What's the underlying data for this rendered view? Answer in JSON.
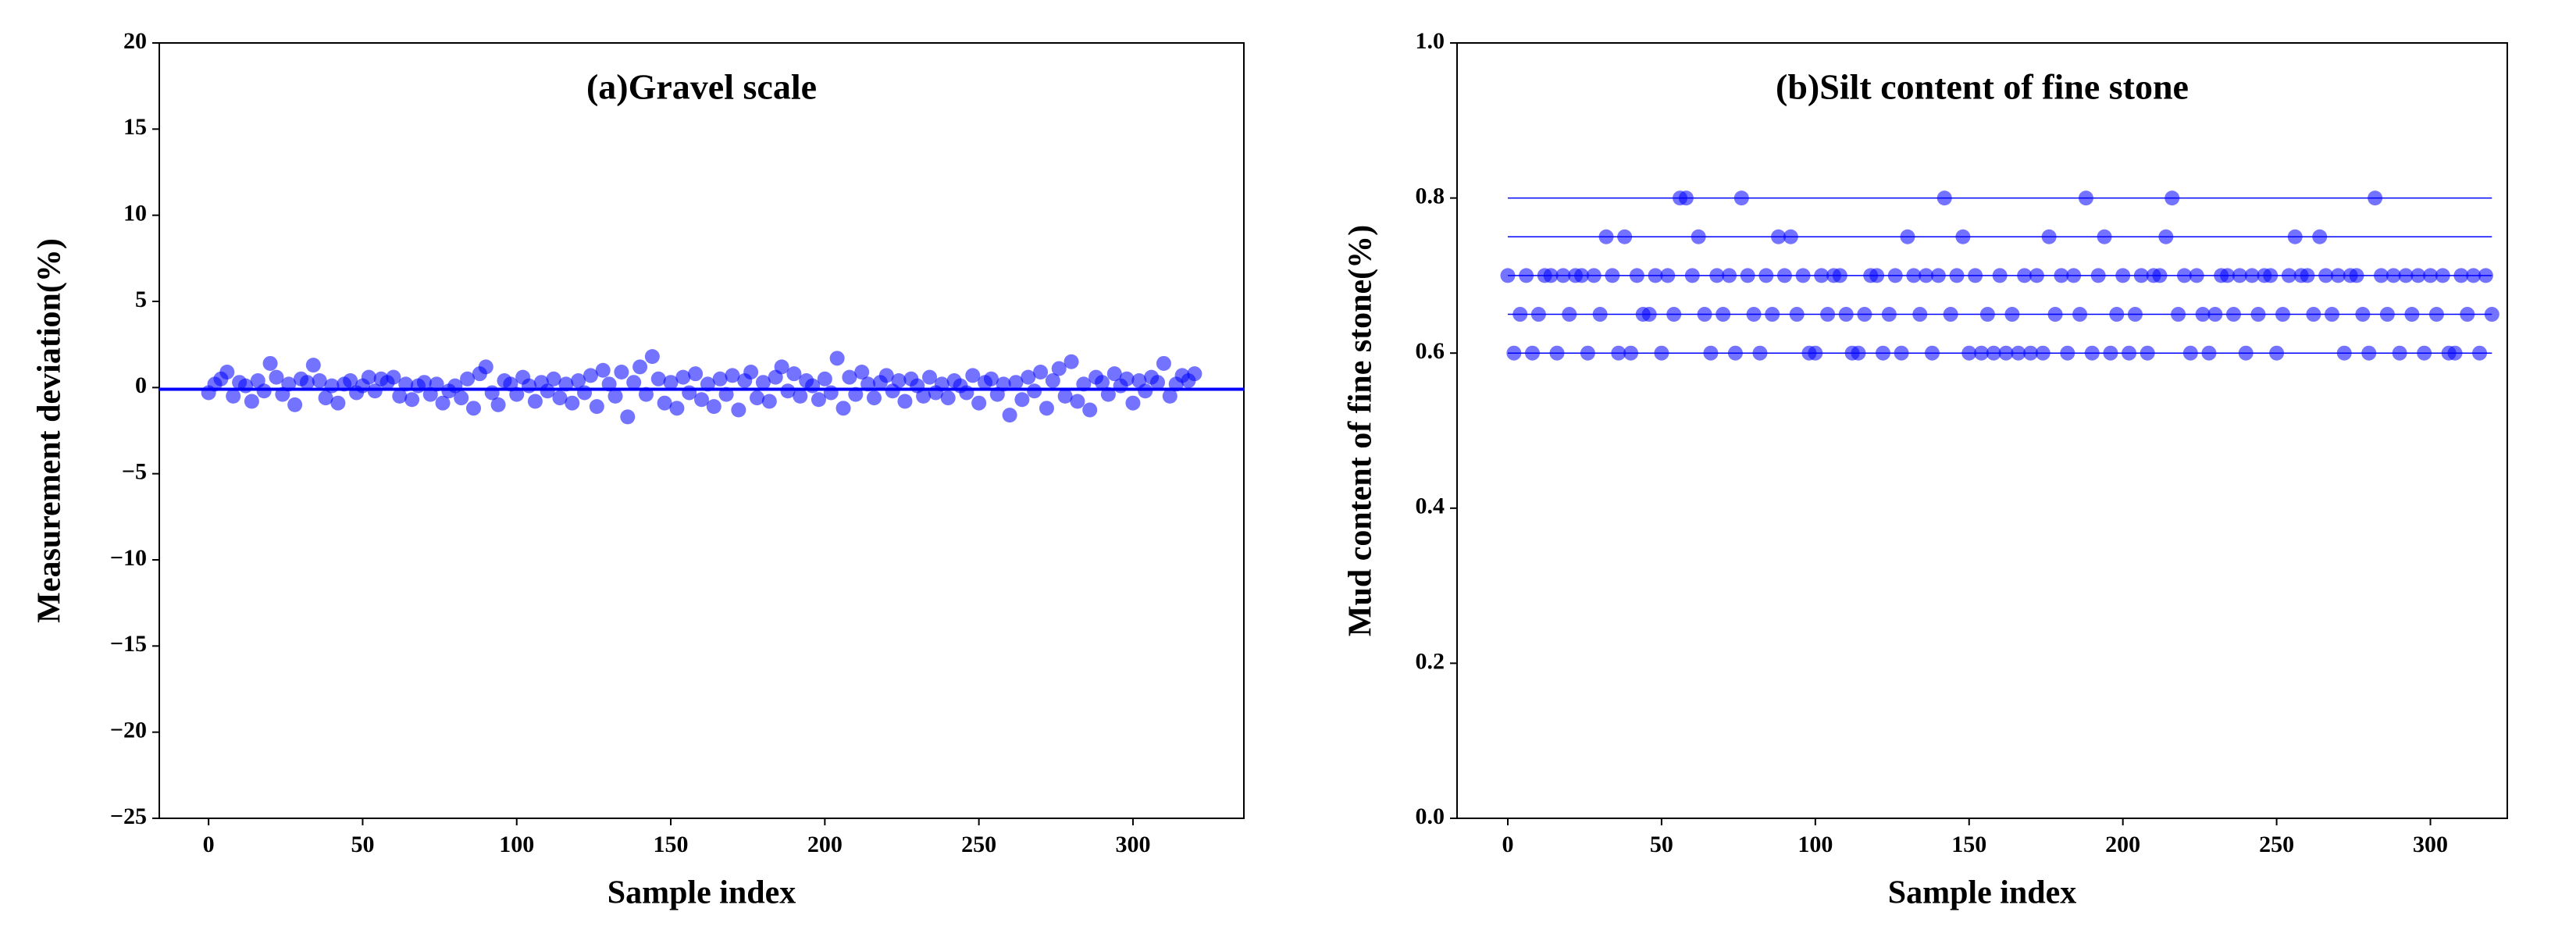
{
  "chart_data": [
    {
      "type": "scatter",
      "title": "(a)Gravel scale",
      "x_label": "Sample index",
      "y_label": "Measurement deviation(%)",
      "color": "#0000ff",
      "reference_lines": [
        -0.1
      ],
      "xlim": [
        -16,
        336
      ],
      "ylim": [
        -25,
        20
      ],
      "xticks": [
        0,
        50,
        100,
        150,
        200,
        250,
        300
      ],
      "yticks": [
        {
          "value": -25,
          "label": "−25"
        },
        {
          "value": -20,
          "label": "−20"
        },
        {
          "value": -15,
          "label": "−15"
        },
        {
          "value": -10,
          "label": "−10"
        },
        {
          "value": -5,
          "label": "−5"
        },
        0,
        5,
        10,
        15,
        20
      ],
      "x": [
        0,
        2,
        4,
        6,
        8,
        10,
        12,
        14,
        16,
        18,
        20,
        22,
        24,
        26,
        28,
        30,
        32,
        34,
        36,
        38,
        40,
        42,
        44,
        46,
        48,
        50,
        52,
        54,
        56,
        58,
        60,
        62,
        64,
        66,
        68,
        70,
        72,
        74,
        76,
        78,
        80,
        82,
        84,
        86,
        88,
        90,
        92,
        94,
        96,
        98,
        100,
        102,
        104,
        106,
        108,
        110,
        112,
        114,
        116,
        118,
        120,
        122,
        124,
        126,
        128,
        130,
        132,
        134,
        136,
        138,
        140,
        142,
        144,
        146,
        148,
        150,
        152,
        154,
        156,
        158,
        160,
        162,
        164,
        166,
        168,
        170,
        172,
        174,
        176,
        178,
        180,
        182,
        184,
        186,
        188,
        190,
        192,
        194,
        196,
        198,
        200,
        202,
        204,
        206,
        208,
        210,
        212,
        214,
        216,
        218,
        220,
        222,
        224,
        226,
        228,
        230,
        232,
        234,
        236,
        238,
        240,
        242,
        244,
        246,
        248,
        250,
        252,
        254,
        256,
        258,
        260,
        262,
        264,
        266,
        268,
        270,
        272,
        274,
        276,
        278,
        280,
        282,
        284,
        286,
        288,
        290,
        292,
        294,
        296,
        298,
        300,
        302,
        304,
        306,
        308,
        310,
        312,
        314,
        316,
        318,
        320
      ],
      "values": [
        -0.3,
        0.2,
        0.5,
        0.9,
        -0.5,
        0.3,
        0.1,
        -0.8,
        0.4,
        -0.2,
        1.4,
        0.6,
        -0.4,
        0.2,
        -1.0,
        0.5,
        0.3,
        1.3,
        0.4,
        -0.6,
        0.1,
        -0.9,
        0.2,
        0.4,
        -0.3,
        0.1,
        0.6,
        -0.2,
        0.5,
        0.3,
        0.6,
        -0.5,
        0.2,
        -0.7,
        0.1,
        0.3,
        -0.4,
        0.2,
        -0.9,
        -0.2,
        0.1,
        -0.6,
        0.5,
        -1.2,
        0.8,
        1.2,
        -0.3,
        -1.0,
        0.4,
        0.2,
        -0.4,
        0.6,
        0.1,
        -0.8,
        0.3,
        -0.2,
        0.5,
        -0.6,
        0.2,
        -0.9,
        0.4,
        -0.3,
        0.7,
        -1.1,
        1.0,
        0.2,
        -0.5,
        0.9,
        -1.7,
        0.3,
        1.2,
        -0.4,
        1.8,
        0.5,
        -0.9,
        0.3,
        -1.2,
        0.6,
        -0.3,
        0.8,
        -0.7,
        0.2,
        -1.1,
        0.5,
        -0.4,
        0.7,
        -1.3,
        0.4,
        0.9,
        -0.6,
        0.3,
        -0.8,
        0.6,
        1.2,
        -0.2,
        0.8,
        -0.5,
        0.4,
        0.1,
        -0.7,
        0.5,
        -0.3,
        1.7,
        -1.2,
        0.6,
        -0.4,
        0.9,
        0.2,
        -0.6,
        0.3,
        0.7,
        -0.2,
        0.4,
        -0.8,
        0.5,
        0.1,
        -0.5,
        0.6,
        -0.3,
        0.2,
        -0.6,
        0.4,
        0.1,
        -0.3,
        0.7,
        -0.9,
        0.3,
        0.5,
        -0.4,
        0.2,
        -1.6,
        0.3,
        -0.7,
        0.6,
        -0.2,
        0.9,
        -1.2,
        0.4,
        1.1,
        -0.5,
        1.5,
        -0.8,
        0.2,
        -1.3,
        0.6,
        0.3,
        -0.4,
        0.8,
        0.1,
        0.5,
        -0.9,
        0.4,
        -0.2,
        0.6,
        0.3,
        1.4,
        -0.5,
        0.2,
        0.7,
        0.4,
        0.8
      ]
    },
    {
      "type": "scatter",
      "title": "(b)Silt content of fine stone",
      "x_label": "Sample index",
      "y_label": "Mud content of fine stone(%)",
      "color": "#0000ff",
      "reference_lines": [
        0.6,
        0.65,
        0.7,
        0.75,
        0.8
      ],
      "xlim": [
        -16.5,
        325
      ],
      "ylim": [
        0,
        1
      ],
      "xticks": [
        0,
        50,
        100,
        150,
        200,
        250,
        300
      ],
      "yticks": [
        {
          "value": 0,
          "label": "0.0"
        },
        0.2,
        0.4,
        0.6,
        0.8,
        {
          "value": 1,
          "label": "1.0"
        }
      ],
      "x": [
        0,
        2,
        4,
        6,
        8,
        10,
        12,
        14,
        16,
        18,
        20,
        22,
        24,
        26,
        28,
        30,
        32,
        34,
        36,
        38,
        40,
        42,
        44,
        46,
        48,
        50,
        52,
        54,
        56,
        58,
        60,
        62,
        64,
        66,
        68,
        70,
        72,
        74,
        76,
        78,
        80,
        82,
        84,
        86,
        88,
        90,
        92,
        94,
        96,
        98,
        100,
        102,
        104,
        106,
        108,
        110,
        112,
        114,
        116,
        118,
        120,
        122,
        124,
        126,
        128,
        130,
        132,
        134,
        136,
        138,
        140,
        142,
        144,
        146,
        148,
        150,
        152,
        154,
        156,
        158,
        160,
        162,
        164,
        166,
        168,
        170,
        172,
        174,
        176,
        178,
        180,
        182,
        184,
        186,
        188,
        190,
        192,
        194,
        196,
        198,
        200,
        202,
        204,
        206,
        208,
        210,
        212,
        214,
        216,
        218,
        220,
        222,
        224,
        226,
        228,
        230,
        232,
        234,
        236,
        238,
        240,
        242,
        244,
        246,
        248,
        250,
        252,
        254,
        256,
        258,
        260,
        262,
        264,
        266,
        268,
        270,
        272,
        274,
        276,
        278,
        280,
        282,
        284,
        286,
        288,
        290,
        292,
        294,
        296,
        298,
        300,
        302,
        304,
        306,
        308,
        310,
        312,
        314,
        316,
        318,
        320
      ],
      "values": [
        0.7,
        0.6,
        0.65,
        0.7,
        0.6,
        0.65,
        0.7,
        0.7,
        0.6,
        0.7,
        0.65,
        0.7,
        0.7,
        0.6,
        0.7,
        0.65,
        0.75,
        0.7,
        0.6,
        0.75,
        0.6,
        0.7,
        0.65,
        0.65,
        0.7,
        0.6,
        0.7,
        0.65,
        0.8,
        0.8,
        0.7,
        0.75,
        0.65,
        0.6,
        0.7,
        0.65,
        0.7,
        0.6,
        0.8,
        0.7,
        0.65,
        0.6,
        0.7,
        0.65,
        0.75,
        0.7,
        0.75,
        0.65,
        0.7,
        0.6,
        0.6,
        0.7,
        0.65,
        0.7,
        0.7,
        0.65,
        0.6,
        0.6,
        0.65,
        0.7,
        0.7,
        0.6,
        0.65,
        0.7,
        0.6,
        0.75,
        0.7,
        0.65,
        0.7,
        0.6,
        0.7,
        0.8,
        0.65,
        0.7,
        0.75,
        0.6,
        0.7,
        0.6,
        0.65,
        0.6,
        0.7,
        0.6,
        0.65,
        0.6,
        0.7,
        0.6,
        0.7,
        0.6,
        0.75,
        0.65,
        0.7,
        0.6,
        0.7,
        0.65,
        0.8,
        0.6,
        0.7,
        0.75,
        0.6,
        0.65,
        0.7,
        0.6,
        0.65,
        0.7,
        0.6,
        0.7,
        0.7,
        0.75,
        0.8,
        0.65,
        0.7,
        0.6,
        0.7,
        0.65,
        0.6,
        0.65,
        0.7,
        0.7,
        0.65,
        0.7,
        0.6,
        0.7,
        0.65,
        0.7,
        0.7,
        0.6,
        0.65,
        0.7,
        0.75,
        0.7,
        0.7,
        0.65,
        0.75,
        0.7,
        0.65,
        0.7,
        0.6,
        0.7,
        0.7,
        0.65,
        0.6,
        0.8,
        0.7,
        0.65,
        0.7,
        0.6,
        0.7,
        0.65,
        0.7,
        0.6,
        0.7,
        0.65,
        0.7,
        0.6,
        0.6,
        0.7,
        0.65,
        0.7,
        0.6,
        0.7,
        0.65
      ]
    }
  ]
}
